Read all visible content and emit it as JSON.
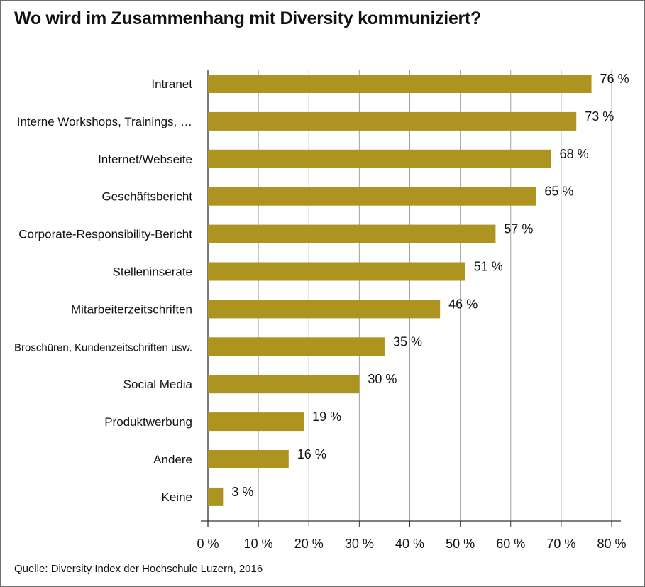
{
  "chart_data": {
    "type": "bar",
    "orientation": "horizontal",
    "title": "Wo wird im Zusammenhang mit Diversity kommuniziert?",
    "categories": [
      "Intranet",
      "Interne Workshops, Trainings, …",
      "Internet/Webseite",
      "Geschäftsbericht",
      "Corporate-Responsibility-Bericht",
      "Stelleninserate",
      "Mitarbeiterzeitschriften",
      "Broschüren, Kundenzeitschriften usw.",
      "Social Media",
      "Produktwerbung",
      "Andere",
      "Keine"
    ],
    "values": [
      76,
      73,
      68,
      65,
      57,
      51,
      46,
      35,
      30,
      19,
      16,
      3
    ],
    "value_labels": [
      "76 %",
      "73 %",
      "68 %",
      "65 %",
      "57 %",
      "51 %",
      "46 %",
      "35 %",
      "30 %",
      "19 %",
      "16 %",
      "3 %"
    ],
    "xlim": [
      0,
      80
    ],
    "xticks": [
      0,
      10,
      20,
      30,
      40,
      50,
      60,
      70,
      80
    ],
    "xtick_labels": [
      "0 %",
      "10 %",
      "20 %",
      "30 %",
      "40 %",
      "50 %",
      "60 %",
      "70 %",
      "80 %"
    ],
    "xlabel": "",
    "ylabel": "",
    "grid": "vertical",
    "bar_color": "#ad931f",
    "source": "Quelle: Diversity Index der Hochschule Luzern, 2016"
  }
}
